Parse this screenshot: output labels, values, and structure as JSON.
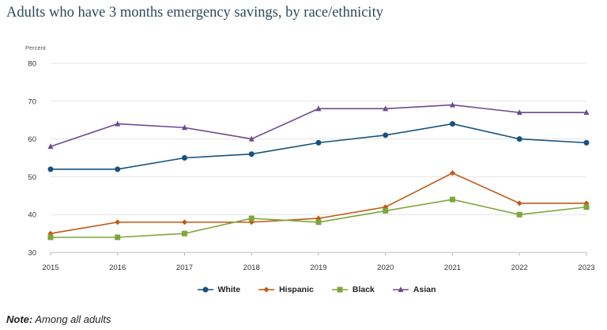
{
  "title": "Adults who have 3 months emergency savings, by race/ethnicity",
  "note": {
    "label": "Note:",
    "text": "Among all adults"
  },
  "chart_data": {
    "type": "line",
    "title": "Adults who have 3 months emergency savings, by race/ethnicity",
    "ylabel": "Percent",
    "xlabel": "",
    "ylim": [
      30,
      80
    ],
    "yticks": [
      30,
      40,
      50,
      60,
      70,
      80
    ],
    "x": [
      "2015",
      "2016",
      "2017",
      "2018",
      "2019",
      "2020",
      "2021",
      "2022",
      "2023"
    ],
    "grid": true,
    "legend": "bottom",
    "series": [
      {
        "name": "White",
        "color": "#17527f",
        "marker": "circle",
        "values": [
          52,
          52,
          55,
          56,
          59,
          61,
          64,
          60,
          59
        ]
      },
      {
        "name": "Hispanic",
        "color": "#c05a14",
        "marker": "diamond",
        "values": [
          35,
          38,
          38,
          38,
          39,
          42,
          51,
          43,
          43
        ]
      },
      {
        "name": "Black",
        "color": "#7fa63a",
        "marker": "square",
        "values": [
          34,
          34,
          35,
          39,
          38,
          41,
          44,
          40,
          42
        ]
      },
      {
        "name": "Asian",
        "color": "#6e4a8e",
        "marker": "triangle",
        "values": [
          58,
          64,
          63,
          60,
          68,
          68,
          69,
          67,
          67
        ]
      }
    ]
  }
}
